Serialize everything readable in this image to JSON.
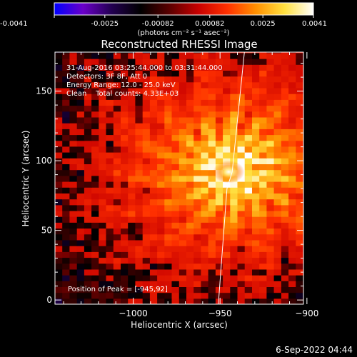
{
  "colorbar": {
    "ticks": [
      "-0.0041",
      "-0.0025",
      "-0.00082",
      "0.00082",
      "0.0025",
      "0.0041"
    ],
    "tick_values": [
      -0.0041,
      -0.0025,
      -0.00082,
      0.00082,
      0.0025,
      0.0041
    ],
    "range": [
      -0.0041,
      0.0041
    ],
    "unit_label": "(photons cm⁻² s⁻¹ asec⁻²)",
    "colormap": [
      "#0000ff",
      "#6a00c8",
      "#220050",
      "#000000",
      "#5a0000",
      "#c80000",
      "#ff3000",
      "#ff9000",
      "#ffe040",
      "#ffffff"
    ]
  },
  "chart_data": {
    "type": "heatmap",
    "title": "Reconstructed RHESSI Image",
    "xlabel": "Heliocentric X (arcsec)",
    "ylabel": "Heliocentric Y (arcsec)",
    "xlim": [
      -1045,
      -902
    ],
    "ylim": [
      -3,
      178
    ],
    "xticks": [
      -1000,
      -950,
      -900
    ],
    "xtick_labels": [
      "−1000",
      "−950",
      "−900"
    ],
    "yticks": [
      0,
      50,
      100,
      150
    ],
    "ytick_labels": [
      "0",
      "50",
      "100",
      "150"
    ],
    "peak": {
      "x": -945,
      "y": 92
    },
    "limb_points": [
      [
        -951,
        -3
      ],
      [
        -946,
        80
      ],
      [
        -943,
        92
      ],
      [
        -936,
        178
      ]
    ],
    "annotations": [
      "31-Aug-2016 03:25:44.000 to 03:31:44.000",
      "Detectors: 3F 8F, Att 0",
      "Energy Range: 12.0 - 25.0 keV",
      "Clean    Total counts: 4.33E+03"
    ],
    "peak_label": "Position of Peak = [-945,92]"
  },
  "footer": {
    "timestamp": "6-Sep-2022 04:44"
  }
}
